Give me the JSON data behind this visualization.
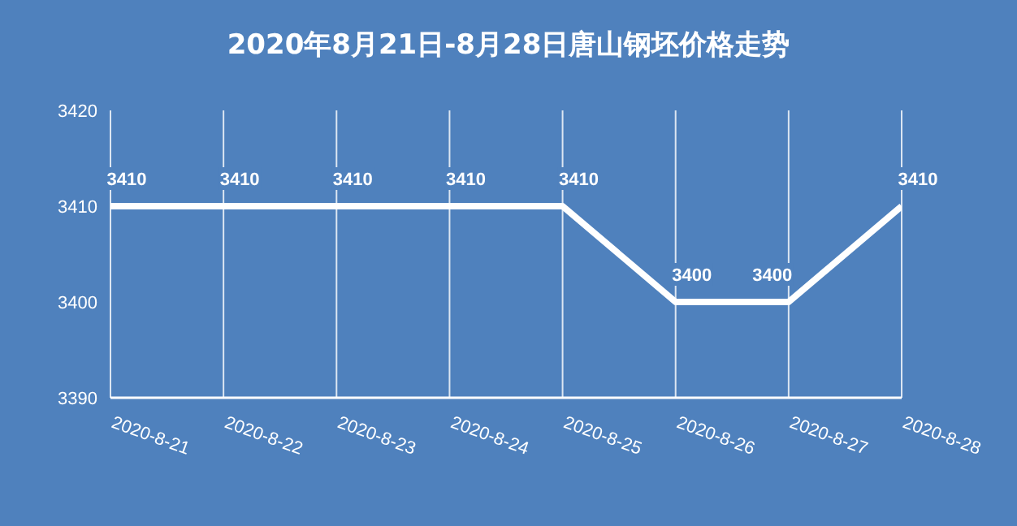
{
  "chart_data": {
    "type": "line",
    "title": "2020年8月21日-8月28日唐山钢坯价格走势",
    "categories": [
      "2020-8-21",
      "2020-8-22",
      "2020-8-23",
      "2020-8-24",
      "2020-8-25",
      "2020-8-26",
      "2020-8-27",
      "2020-8-28"
    ],
    "series": [
      {
        "color": "#ffffff",
        "values": [
          3410,
          3410,
          3410,
          3410,
          3410,
          3400,
          3400,
          3410
        ]
      }
    ],
    "ylim": [
      3390,
      3420
    ],
    "yticks": [
      3390,
      3400,
      3410,
      3420
    ],
    "grid": "x",
    "data_labels": true,
    "marker": "none",
    "line_style": "solid"
  }
}
